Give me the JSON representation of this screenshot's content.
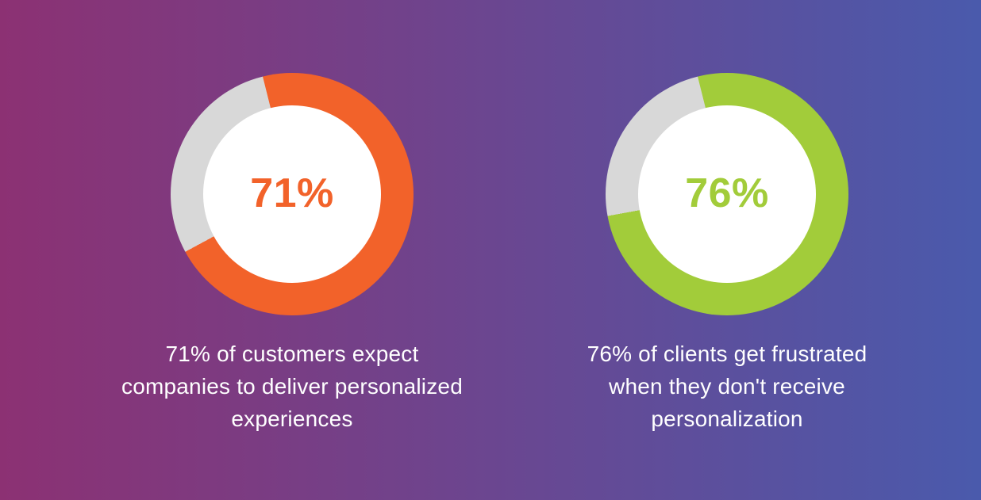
{
  "background": {
    "gradient_left": "#8C3173",
    "gradient_right": "#4A5AAC",
    "direction": "90deg",
    "hole_color": "#FFFFFF",
    "caption_text_color": "#FFFFFF"
  },
  "chart_data": [
    {
      "type": "pie",
      "variant": "donut",
      "value": 71,
      "unit": "%",
      "label": "71%",
      "color": "#F2622A",
      "track_color": "#D8D8D8",
      "start_angle_deg": -14,
      "legend_position": "none",
      "caption": "71% of customers expect companies to deliver personalized experiences",
      "caption_lines": [
        "71% of customers expect",
        "companies to deliver personalized",
        "experiences"
      ]
    },
    {
      "type": "pie",
      "variant": "donut",
      "value": 76,
      "unit": "%",
      "label": "76%",
      "color": "#A2CC3A",
      "track_color": "#D8D8D8",
      "start_angle_deg": -14,
      "legend_position": "none",
      "caption": "76% of clients get frustrated when they don't receive personalization",
      "caption_lines": [
        "76% of clients get frustrated",
        "when they don't receive",
        "personalization"
      ]
    }
  ]
}
